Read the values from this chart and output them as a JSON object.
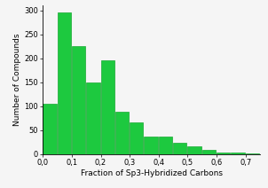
{
  "bar_lefts": [
    0.0,
    0.05,
    0.1,
    0.15,
    0.2,
    0.25,
    0.3,
    0.35,
    0.4,
    0.45,
    0.5,
    0.55,
    0.6,
    0.65,
    0.7
  ],
  "bar_heights": [
    105,
    295,
    225,
    150,
    195,
    88,
    67,
    37,
    37,
    23,
    17,
    9,
    3,
    4,
    1
  ],
  "bar_width": 0.047,
  "bar_color": "#1dc93f",
  "bar_edgecolor": "#18a832",
  "xlabel": "Fraction of Sp3-Hybridized Carbons",
  "ylabel": "Number of Compounds",
  "xlim": [
    0.0,
    0.75
  ],
  "ylim": [
    0,
    310
  ],
  "xticks": [
    0.0,
    0.1,
    0.2,
    0.3,
    0.4,
    0.5,
    0.6,
    0.7
  ],
  "xtick_labels": [
    "0,0",
    "0,1",
    "0,2",
    "0,3",
    "0,4",
    "0,5",
    "0,6",
    "0,7"
  ],
  "yticks": [
    0,
    50,
    100,
    150,
    200,
    250,
    300
  ],
  "xlabel_fontsize": 6.5,
  "ylabel_fontsize": 6.5,
  "tick_fontsize": 6,
  "background_color": "#f5f5f5"
}
